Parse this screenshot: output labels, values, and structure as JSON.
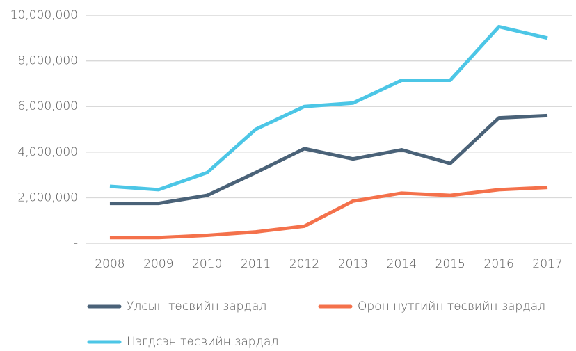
{
  "chart_data": {
    "type": "line",
    "categories": [
      "2008",
      "2009",
      "2010",
      "2011",
      "2012",
      "2013",
      "2014",
      "2015",
      "2016",
      "2017"
    ],
    "series": [
      {
        "name": "Улсын төсвийн зардал",
        "color": "#4a6278",
        "values": [
          1750000,
          1750000,
          2100000,
          3100000,
          4150000,
          3700000,
          4100000,
          3500000,
          5500000,
          5600000
        ]
      },
      {
        "name": "Орон нутгийн төсвийн зардал",
        "color": "#f4714b",
        "values": [
          250000,
          250000,
          350000,
          500000,
          750000,
          1850000,
          2200000,
          2100000,
          2350000,
          2450000
        ]
      },
      {
        "name": "Нэгдсэн төсвийн зардал",
        "color": "#4cc6e6",
        "values": [
          2500000,
          2350000,
          3100000,
          5000000,
          6000000,
          6150000,
          7150000,
          7150000,
          9500000,
          9000000
        ]
      }
    ],
    "ylim": [
      0,
      10000000
    ],
    "yticks": [
      {
        "value": 0,
        "label": "-"
      },
      {
        "value": 2000000,
        "label": "2,000,000"
      },
      {
        "value": 4000000,
        "label": "4,000,000"
      },
      {
        "value": 6000000,
        "label": "6,000,000"
      },
      {
        "value": 8000000,
        "label": "8,000,000"
      },
      {
        "value": 10000000,
        "label": "10,000,000"
      }
    ],
    "grid": true
  }
}
